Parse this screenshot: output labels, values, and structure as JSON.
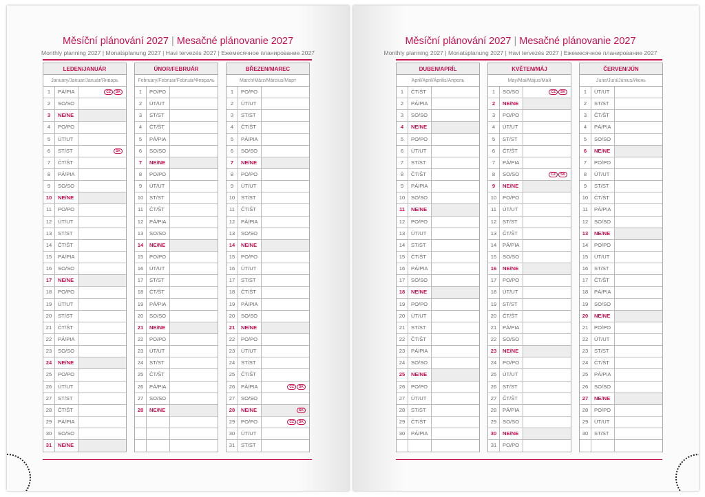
{
  "title_cz": "Měsíční plánování 2027",
  "title_sep": "|",
  "title_sk": "Mesačné plánovanie 2027",
  "subtitle": "Monthly planning 2027 | Monatsplanung 2027 | Havi tervezés 2027 | Ежемесячное планирование 2027",
  "accent": "#c8104e",
  "pages": [
    {
      "months": [
        {
          "name": "LEDEN/JANUÁR",
          "sub": "January/Januar/Január/Январь",
          "days": [
            "PÁ/PIA",
            "SO/SO",
            "NE/NE",
            "PO/PO",
            "ÚT/UT",
            "ST/ST",
            "ČT/ŠT",
            "PÁ/PIA",
            "SO/SO",
            "NE/NE",
            "PO/PO",
            "ÚT/UT",
            "ST/ST",
            "ČT/ŠT",
            "PÁ/PIA",
            "SO/SO",
            "NE/NE",
            "PO/PO",
            "ÚT/UT",
            "ST/ST",
            "ČT/ŠT",
            "PÁ/PIA",
            "SO/SO",
            "NE/NE",
            "PO/PO",
            "ÚT/UT",
            "ST/ST",
            "ČT/ŠT",
            "PÁ/PIA",
            "SO/SO",
            "NE/NE"
          ],
          "holidays": {
            "1": [
              "CZ",
              "SK"
            ],
            "6": [
              "SK"
            ]
          }
        },
        {
          "name": "ÚNOR/FEBRUÁR",
          "sub": "February/Februar/Február/Февраль",
          "days": [
            "PO/PO",
            "ÚT/UT",
            "ST/ST",
            "ČT/ŠT",
            "PÁ/PIA",
            "SO/SO",
            "NE/NE",
            "PO/PO",
            "ÚT/UT",
            "ST/ST",
            "ČT/ŠT",
            "PÁ/PIA",
            "SO/SO",
            "NE/NE",
            "PO/PO",
            "ÚT/UT",
            "ST/ST",
            "ČT/ŠT",
            "PÁ/PIA",
            "SO/SO",
            "NE/NE",
            "PO/PO",
            "ÚT/UT",
            "ST/ST",
            "ČT/ŠT",
            "PÁ/PIA",
            "SO/SO",
            "NE/NE"
          ],
          "holidays": {}
        },
        {
          "name": "BŘEZEN/MAREC",
          "sub": "March/März/Március/Март",
          "days": [
            "PO/PO",
            "ÚT/UT",
            "ST/ST",
            "ČT/ŠT",
            "PÁ/PIA",
            "SO/SO",
            "NE/NE",
            "PO/PO",
            "ÚT/UT",
            "ST/ST",
            "ČT/ŠT",
            "PÁ/PIA",
            "SO/SO",
            "NE/NE",
            "PO/PO",
            "ÚT/UT",
            "ST/ST",
            "ČT/ŠT",
            "PÁ/PIA",
            "SO/SO",
            "NE/NE",
            "PO/PO",
            "ÚT/UT",
            "ST/ST",
            "ČT/ŠT",
            "PÁ/PIA",
            "SO/SO",
            "NE/NE",
            "PO/PO",
            "ÚT/UT",
            "ST/ST"
          ],
          "holidays": {
            "26": [
              "CZ",
              "SK"
            ],
            "28": [
              "SK"
            ],
            "29": [
              "CZ",
              "SK"
            ]
          }
        }
      ]
    },
    {
      "months": [
        {
          "name": "DUBEN/APRÍL",
          "sub": "April/April/Április/Апрель",
          "days": [
            "ČT/ŠT",
            "PÁ/PIA",
            "SO/SO",
            "NE/NE",
            "PO/PO",
            "ÚT/UT",
            "ST/ST",
            "ČT/ŠT",
            "PÁ/PIA",
            "SO/SO",
            "NE/NE",
            "PO/PO",
            "ÚT/UT",
            "ST/ST",
            "ČT/ŠT",
            "PÁ/PIA",
            "SO/SO",
            "NE/NE",
            "PO/PO",
            "ÚT/UT",
            "ST/ST",
            "ČT/ŠT",
            "PÁ/PIA",
            "SO/SO",
            "NE/NE",
            "PO/PO",
            "ÚT/UT",
            "ST/ST",
            "ČT/ŠT",
            "PÁ/PIA"
          ],
          "holidays": {}
        },
        {
          "name": "KVĚTEN/MÁJ",
          "sub": "May/Mai/Május/Май",
          "days": [
            "SO/SO",
            "NE/NE",
            "PO/PO",
            "ÚT/UT",
            "ST/ST",
            "ČT/ŠT",
            "PÁ/PIA",
            "SO/SO",
            "NE/NE",
            "PO/PO",
            "ÚT/UT",
            "ST/ST",
            "ČT/ŠT",
            "PÁ/PIA",
            "SO/SO",
            "NE/NE",
            "PO/PO",
            "ÚT/UT",
            "ST/ST",
            "ČT/ŠT",
            "PÁ/PIA",
            "SO/SO",
            "NE/NE",
            "PO/PO",
            "ÚT/UT",
            "ST/ST",
            "ČT/ŠT",
            "PÁ/PIA",
            "SO/SO",
            "NE/NE",
            "PO/PO"
          ],
          "holidays": {
            "1": [
              "CZ",
              "SK"
            ],
            "8": [
              "CZ",
              "SK"
            ]
          }
        },
        {
          "name": "ČERVEN/JÚN",
          "sub": "June/Juni/Június/Июнь",
          "days": [
            "ÚT/UT",
            "ST/ST",
            "ČT/ŠT",
            "PÁ/PIA",
            "SO/SO",
            "NE/NE",
            "PO/PO",
            "ÚT/UT",
            "ST/ST",
            "ČT/ŠT",
            "PÁ/PIA",
            "SO/SO",
            "NE/NE",
            "PO/PO",
            "ÚT/UT",
            "ST/ST",
            "ČT/ŠT",
            "PÁ/PIA",
            "SO/SO",
            "NE/NE",
            "PO/PO",
            "ÚT/UT",
            "ST/ST",
            "ČT/ŠT",
            "PÁ/PIA",
            "SO/SO",
            "NE/NE",
            "PO/PO",
            "ÚT/UT",
            "ST/ST"
          ],
          "holidays": {}
        }
      ]
    }
  ]
}
